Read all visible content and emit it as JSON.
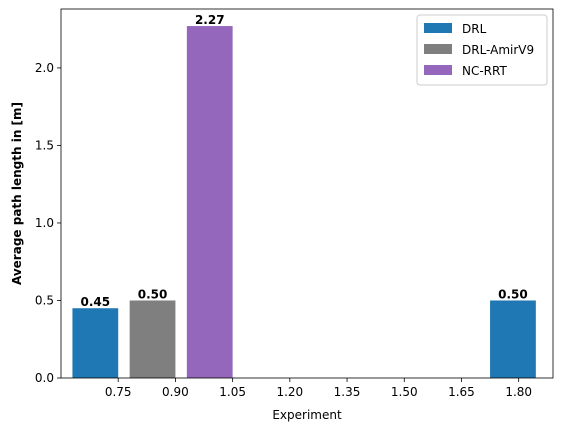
{
  "chart_data": {
    "type": "bar",
    "title": "",
    "xlabel": "Experiment",
    "ylabel": "Average path length in [m]",
    "xlim": [
      0.6,
      1.89
    ],
    "ylim": [
      0,
      2.38
    ],
    "xticks": [
      0.75,
      0.9,
      1.05,
      1.2,
      1.35,
      1.5,
      1.65,
      1.8
    ],
    "xtick_labels": [
      "0.75",
      "0.90",
      "1.05",
      "1.20",
      "1.35",
      "1.50",
      "1.65",
      "1.80"
    ],
    "yticks": [
      0.0,
      0.5,
      1.0,
      1.5,
      2.0
    ],
    "ytick_labels": [
      "0.0",
      "0.5",
      "1.0",
      "1.5",
      "2.0"
    ],
    "bar_width": 0.12,
    "bars": [
      {
        "x": 0.69,
        "value": 0.45,
        "label": "0.45",
        "series": "DRL"
      },
      {
        "x": 0.84,
        "value": 0.5,
        "label": "0.50",
        "series": "DRL-AmirV9"
      },
      {
        "x": 0.99,
        "value": 2.27,
        "label": "2.27",
        "series": "NC-RRT"
      },
      {
        "x": 1.785,
        "value": 0.5,
        "label": "0.50",
        "series": "DRL"
      }
    ],
    "series": [
      {
        "name": "DRL",
        "color": "#1f77b4"
      },
      {
        "name": "DRL-AmirV9",
        "color": "#7f7f7f"
      },
      {
        "name": "NC-RRT",
        "color": "#9467bd"
      }
    ],
    "legend_position": "top-right",
    "grid": false
  }
}
